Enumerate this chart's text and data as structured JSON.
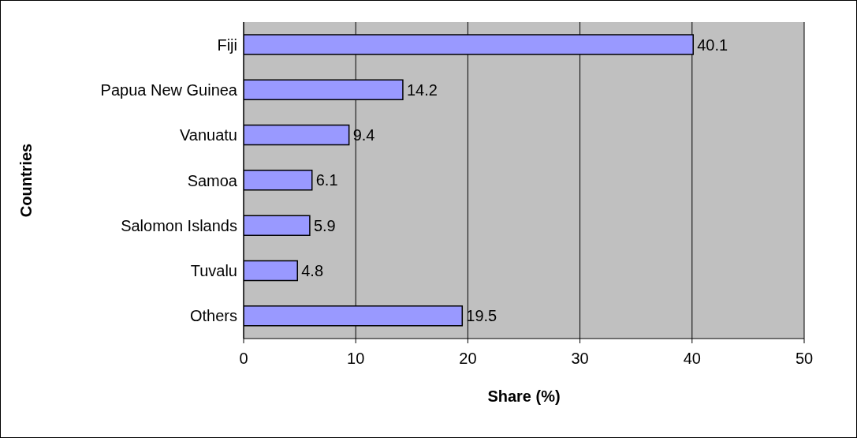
{
  "chart_data": {
    "type": "bar",
    "orientation": "horizontal",
    "xlabel": "Share (%)",
    "ylabel": "Countries",
    "categories": [
      "Fiji",
      "Papua New Guinea",
      "Vanuatu",
      "Samoa",
      "Salomon Islands",
      "Tuvalu",
      "Others"
    ],
    "values": [
      40.1,
      14.2,
      9.4,
      6.1,
      5.9,
      4.8,
      19.5
    ],
    "color": "#9999ff",
    "xlim": [
      0,
      50
    ],
    "xticks": [
      0,
      10,
      20,
      30,
      40,
      50
    ],
    "grid": "x",
    "data_labels": true
  }
}
